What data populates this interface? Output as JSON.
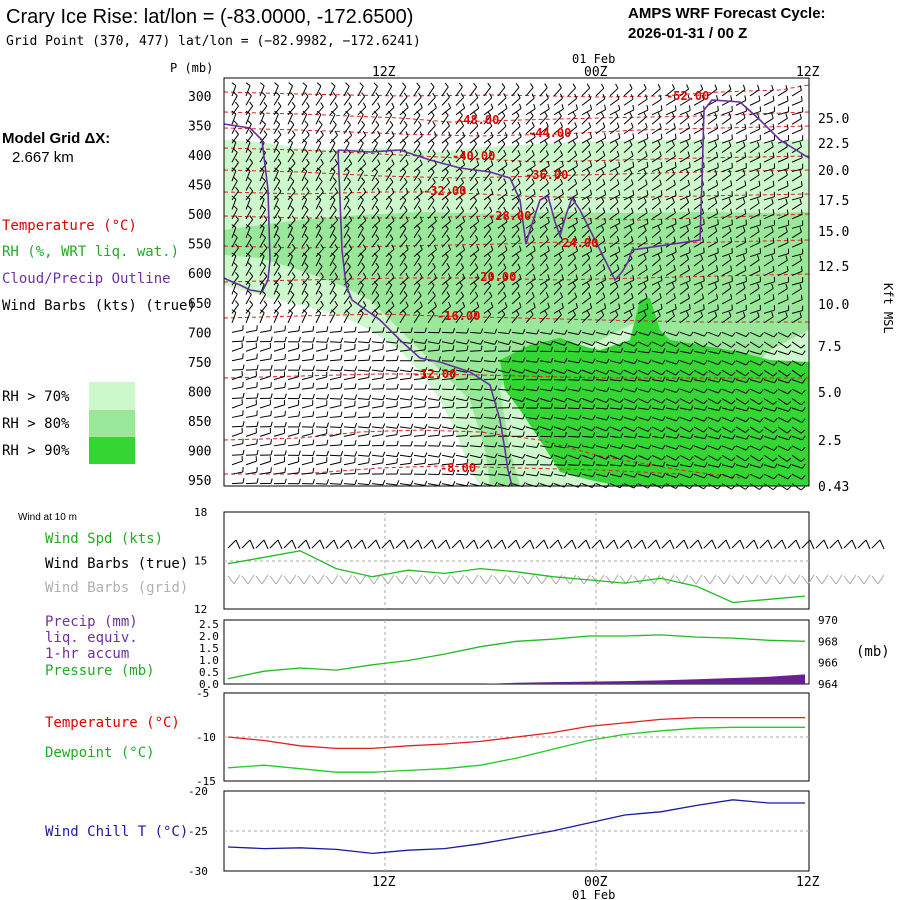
{
  "header": {
    "title": "Crary Ice Rise:  lat/lon = (-83.0000, -172.6500)",
    "grid_point": "Grid Point (370, 477) lat/lon = (−82.9982, −172.6241)",
    "forecast_label": "AMPS WRF Forecast Cycle:",
    "forecast_cycle": "2026-01-31 / 00  Z"
  },
  "model_grid": {
    "label": "Model Grid ΔX:",
    "value": "2.667 km"
  },
  "legend": {
    "temperature": "Temperature (°C)",
    "rh": "RH (%, WRT liq. wat.)",
    "cloud": "Cloud/Precip Outline",
    "barbs": "Wind Barbs (kts) (true)",
    "rh70": "RH > 70%",
    "rh80": "RH > 80%",
    "rh90": "RH > 90%"
  },
  "colors": {
    "temperature": "#ff0000",
    "temp_contour": "#e02020",
    "rh70": "#ccf8cc",
    "rh80": "#99e899",
    "rh90": "#33d633",
    "cloud": "#7030a0",
    "wind_speed": "#22bb22",
    "barb_grid": "#b0b0b0",
    "precip": "#6a2090",
    "wind_chill": "#1a1aa0",
    "dewpoint": "#22cc22"
  },
  "axes": {
    "p_label": "P (mb)",
    "time_top": [
      "12Z",
      "00Z",
      "12Z"
    ],
    "time_top_date": "01 Feb",
    "time_bottom": [
      "12Z",
      "00Z",
      "12Z"
    ],
    "time_bottom_date": "01 Feb",
    "kft_label": "Kft MSL"
  },
  "panel_labels": {
    "wind10m": "Wind at 10 m",
    "wind_spd": "Wind Spd (kts)",
    "wind_barbs_true": "Wind Barbs (true)",
    "wind_barbs_grid": "Wind Barbs (grid)",
    "precip": "Precip (mm)",
    "precip2": "liq. equiv.",
    "precip3": "1-hr accum",
    "pressure": "Pressure (mb)",
    "pressure_unit": "(mb)",
    "temperature": "Temperature (°C)",
    "dewpoint": "Dewpoint (°C)",
    "windchill": "Wind Chill T (°C)"
  },
  "chart_data": [
    {
      "type": "heatmap",
      "title": "Crary Ice Rise:  lat/lon = (-83.0000, -172.6500)",
      "ylabel": "P (mb)",
      "y2label": "Kft MSL",
      "x_ticks": [
        "12Z",
        "00Z",
        "12Z"
      ],
      "y_ticks": [
        300,
        350,
        400,
        450,
        500,
        550,
        600,
        650,
        700,
        750,
        800,
        850,
        900,
        950
      ],
      "y_reversed": true,
      "y2_ticks": [
        "25.0",
        "22.5",
        "20.0",
        "17.5",
        "15.0",
        "12.5",
        "10.0",
        "7.5",
        "5.0",
        "2.5",
        "0.43"
      ],
      "temperature_contours": [
        {
          "label": "-52.00",
          "pressure": 310
        },
        {
          "label": "-48.00",
          "pressure": 340
        },
        {
          "label": "-44.00",
          "pressure": 360
        },
        {
          "label": "-40.00",
          "pressure": 400
        },
        {
          "label": "-36.00",
          "pressure": 430
        },
        {
          "label": "-32.00",
          "pressure": 470
        },
        {
          "label": "-28.00",
          "pressure": 515
        },
        {
          "label": "-24.00",
          "pressure": 545
        },
        {
          "label": "-20.00",
          "pressure": 625
        },
        {
          "label": "-16.00",
          "pressure": 690
        },
        {
          "label": "-12.00",
          "pressure": 780
        },
        {
          "label": "-8.00",
          "pressure": 940
        }
      ],
      "legend": [
        "RH > 70%",
        "RH > 80%",
        "RH > 90%"
      ]
    },
    {
      "type": "line",
      "title": "Wind at 10 m",
      "ylabel": "Wind Spd (kts)",
      "ylim": [
        12,
        18
      ],
      "y_ticks": [
        12,
        15,
        18
      ],
      "x": [
        0,
        3,
        6,
        9,
        12,
        15,
        18,
        21,
        24,
        27,
        30,
        33,
        36,
        39,
        42,
        45,
        48
      ],
      "series": [
        {
          "name": "Wind Spd (kts)",
          "values": [
            14.8,
            15.2,
            15.6,
            14.5,
            14.0,
            14.4,
            14.2,
            14.5,
            14.3,
            14.0,
            13.8,
            13.6,
            13.9,
            13.4,
            12.4,
            12.6,
            12.8
          ]
        }
      ]
    },
    {
      "type": "line",
      "title": "Precip / Pressure",
      "ylabel": "Precip (mm)",
      "y_ticks": [
        0.0,
        0.5,
        1.0,
        1.5,
        2.0,
        2.5
      ],
      "y2_ticks": [
        964,
        966,
        968,
        970
      ],
      "y2label": "(mb)",
      "x": [
        0,
        3,
        6,
        9,
        12,
        15,
        18,
        21,
        24,
        27,
        30,
        33,
        36,
        39,
        42,
        45,
        48
      ],
      "series": [
        {
          "name": "Pressure (mb)",
          "values": [
            964.5,
            965.2,
            965.5,
            965.3,
            965.8,
            966.2,
            966.8,
            967.5,
            968.0,
            968.2,
            968.5,
            968.5,
            968.6,
            968.4,
            968.3,
            968.1,
            968.0
          ]
        },
        {
          "name": "Precip (mm)",
          "values": [
            0,
            0,
            0,
            0,
            0,
            0,
            0,
            0,
            0.05,
            0.08,
            0.1,
            0.12,
            0.15,
            0.2,
            0.25,
            0.3,
            0.4
          ]
        }
      ]
    },
    {
      "type": "line",
      "title": "Temperature / Dewpoint",
      "ylim": [
        -15,
        -5
      ],
      "y_ticks": [
        -5,
        -10,
        -15
      ],
      "x": [
        0,
        3,
        6,
        9,
        12,
        15,
        18,
        21,
        24,
        27,
        30,
        33,
        36,
        39,
        42,
        45,
        48
      ],
      "series": [
        {
          "name": "Temperature (°C)",
          "values": [
            -10.0,
            -10.4,
            -11.0,
            -11.3,
            -11.3,
            -11.0,
            -10.8,
            -10.5,
            -10.0,
            -9.5,
            -8.8,
            -8.4,
            -8.0,
            -7.8,
            -7.8,
            -7.8,
            -7.8
          ]
        },
        {
          "name": "Dewpoint (°C)",
          "values": [
            -13.5,
            -13.2,
            -13.6,
            -14.0,
            -14.0,
            -13.8,
            -13.6,
            -13.2,
            -12.4,
            -11.4,
            -10.4,
            -9.7,
            -9.3,
            -9.0,
            -8.9,
            -8.9,
            -8.9
          ]
        }
      ]
    },
    {
      "type": "line",
      "title": "Wind Chill T",
      "ylim": [
        -30,
        -20
      ],
      "y_ticks": [
        -20,
        -25,
        -30
      ],
      "x": [
        0,
        3,
        6,
        9,
        12,
        15,
        18,
        21,
        24,
        27,
        30,
        33,
        36,
        39,
        42,
        45,
        48
      ],
      "series": [
        {
          "name": "Wind Chill T (°C)",
          "values": [
            -27.0,
            -27.2,
            -27.1,
            -27.3,
            -27.8,
            -27.4,
            -27.2,
            -26.6,
            -25.8,
            -25.0,
            -24.0,
            -23.0,
            -22.6,
            -21.8,
            -21.1,
            -21.5,
            -21.5
          ]
        }
      ]
    }
  ]
}
